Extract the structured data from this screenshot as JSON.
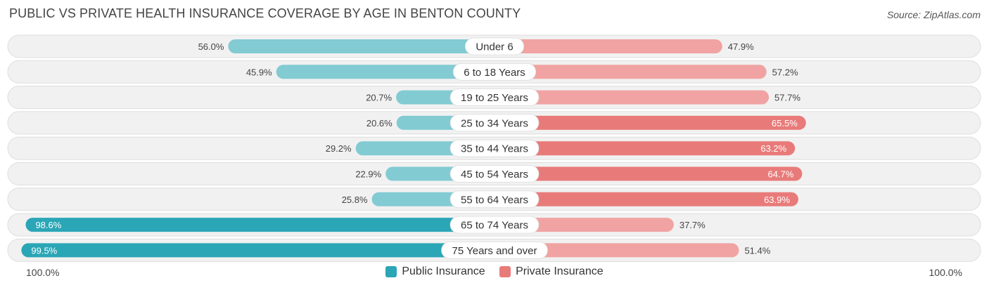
{
  "title": "PUBLIC VS PRIVATE HEALTH INSURANCE COVERAGE BY AGE IN BENTON COUNTY",
  "source": "Source: ZipAtlas.com",
  "axis": {
    "left_label": "100.0%",
    "right_label": "100.0%"
  },
  "legend": {
    "public_label": "Public Insurance",
    "private_label": "Private Insurance"
  },
  "colors": {
    "public_light": "#82cbd3",
    "public_dark": "#2aa6b6",
    "private_light": "#f0a3a2",
    "private_dark": "#e87b79",
    "row_bg": "#f1f1f1",
    "row_border": "#dedede"
  },
  "chart_data": {
    "type": "bar",
    "orientation": "horizontal-diverging",
    "categories": [
      "Under 6",
      "6 to 18 Years",
      "19 to 25 Years",
      "25 to 34 Years",
      "35 to 44 Years",
      "45 to 54 Years",
      "55 to 64 Years",
      "65 to 74 Years",
      "75 Years and over"
    ],
    "series": [
      {
        "name": "Public Insurance",
        "values": [
          56.0,
          45.9,
          20.7,
          20.6,
          29.2,
          22.9,
          25.8,
          98.6,
          99.5
        ],
        "labels": [
          "56.0%",
          "45.9%",
          "20.7%",
          "20.6%",
          "29.2%",
          "22.9%",
          "25.8%",
          "98.6%",
          "99.5%"
        ]
      },
      {
        "name": "Private Insurance",
        "values": [
          47.9,
          57.2,
          57.7,
          65.5,
          63.2,
          64.7,
          63.9,
          37.7,
          51.4
        ],
        "labels": [
          "47.9%",
          "57.2%",
          "57.7%",
          "65.5%",
          "63.2%",
          "64.7%",
          "63.9%",
          "37.7%",
          "51.4%"
        ]
      }
    ],
    "xlim": [
      -100,
      100
    ],
    "legend_position": "bottom-center"
  }
}
